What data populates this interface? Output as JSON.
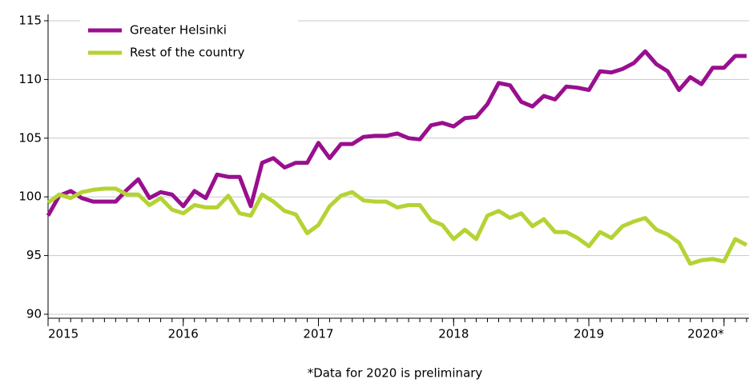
{
  "chart_data": {
    "type": "line",
    "note": "*Data for 2020 is preliminary",
    "x": [
      2015,
      2015.083,
      2015.167,
      2015.25,
      2015.333,
      2015.417,
      2015.5,
      2015.583,
      2015.667,
      2015.75,
      2015.833,
      2015.917,
      2016,
      2016.083,
      2016.167,
      2016.25,
      2016.333,
      2016.417,
      2016.5,
      2016.583,
      2016.667,
      2016.75,
      2016.833,
      2016.917,
      2017,
      2017.083,
      2017.167,
      2017.25,
      2017.333,
      2017.417,
      2017.5,
      2017.583,
      2017.667,
      2017.75,
      2017.833,
      2017.917,
      2018,
      2018.083,
      2018.167,
      2018.25,
      2018.333,
      2018.417,
      2018.5,
      2018.583,
      2018.667,
      2018.75,
      2018.833,
      2018.917,
      2019,
      2019.083,
      2019.167,
      2019.25,
      2019.333,
      2019.417,
      2019.5,
      2019.583,
      2019.667,
      2019.75,
      2019.833,
      2019.917,
      2020,
      2020.083,
      2020.167
    ],
    "series": [
      {
        "name": "Greater Helsinki",
        "color": "#990f8e",
        "values": [
          98.4,
          100.1,
          100.5,
          99.9,
          99.6,
          99.6,
          99.6,
          100.6,
          101.5,
          99.9,
          100.4,
          100.2,
          99.2,
          100.5,
          99.9,
          101.9,
          101.7,
          101.7,
          99.2,
          102.9,
          103.3,
          102.5,
          102.9,
          102.9,
          104.6,
          103.3,
          104.5,
          104.5,
          105.1,
          105.2,
          105.2,
          105.4,
          105.0,
          104.9,
          106.1,
          106.3,
          106.0,
          106.7,
          106.8,
          107.9,
          109.7,
          109.5,
          108.1,
          107.7,
          108.6,
          108.3,
          109.4,
          109.3,
          109.1,
          110.7,
          110.6,
          110.9,
          111.4,
          112.4,
          111.3,
          110.7,
          109.1,
          110.2,
          109.6,
          111.0,
          111.0,
          112.0,
          112.0
        ]
      },
      {
        "name": "Rest of the country",
        "color": "#b4d334",
        "values": [
          99.5,
          100.2,
          99.9,
          100.4,
          100.6,
          100.7,
          100.7,
          100.2,
          100.2,
          99.3,
          99.9,
          98.9,
          98.6,
          99.3,
          99.1,
          99.1,
          100.1,
          98.6,
          98.4,
          100.2,
          99.6,
          98.8,
          98.5,
          96.9,
          97.6,
          99.2,
          100.1,
          100.4,
          99.7,
          99.6,
          99.6,
          99.1,
          99.3,
          99.3,
          98.0,
          97.6,
          96.4,
          97.2,
          96.4,
          98.4,
          98.8,
          98.2,
          98.6,
          97.5,
          98.1,
          97.0,
          97.0,
          96.5,
          95.8,
          97.0,
          96.5,
          97.5,
          97.9,
          98.2,
          97.2,
          96.8,
          96.1,
          94.3,
          94.6,
          94.7,
          94.5,
          96.4,
          95.9
        ]
      }
    ],
    "xlim": [
      2015,
      2020.167
    ],
    "xticks": [
      2015,
      2016,
      2017,
      2018,
      2019,
      {
        "value": 2020,
        "label": "2020*"
      }
    ],
    "ylim": [
      90,
      115
    ],
    "yticks": [
      90,
      95,
      100,
      105,
      110,
      115
    ],
    "grid": true
  }
}
